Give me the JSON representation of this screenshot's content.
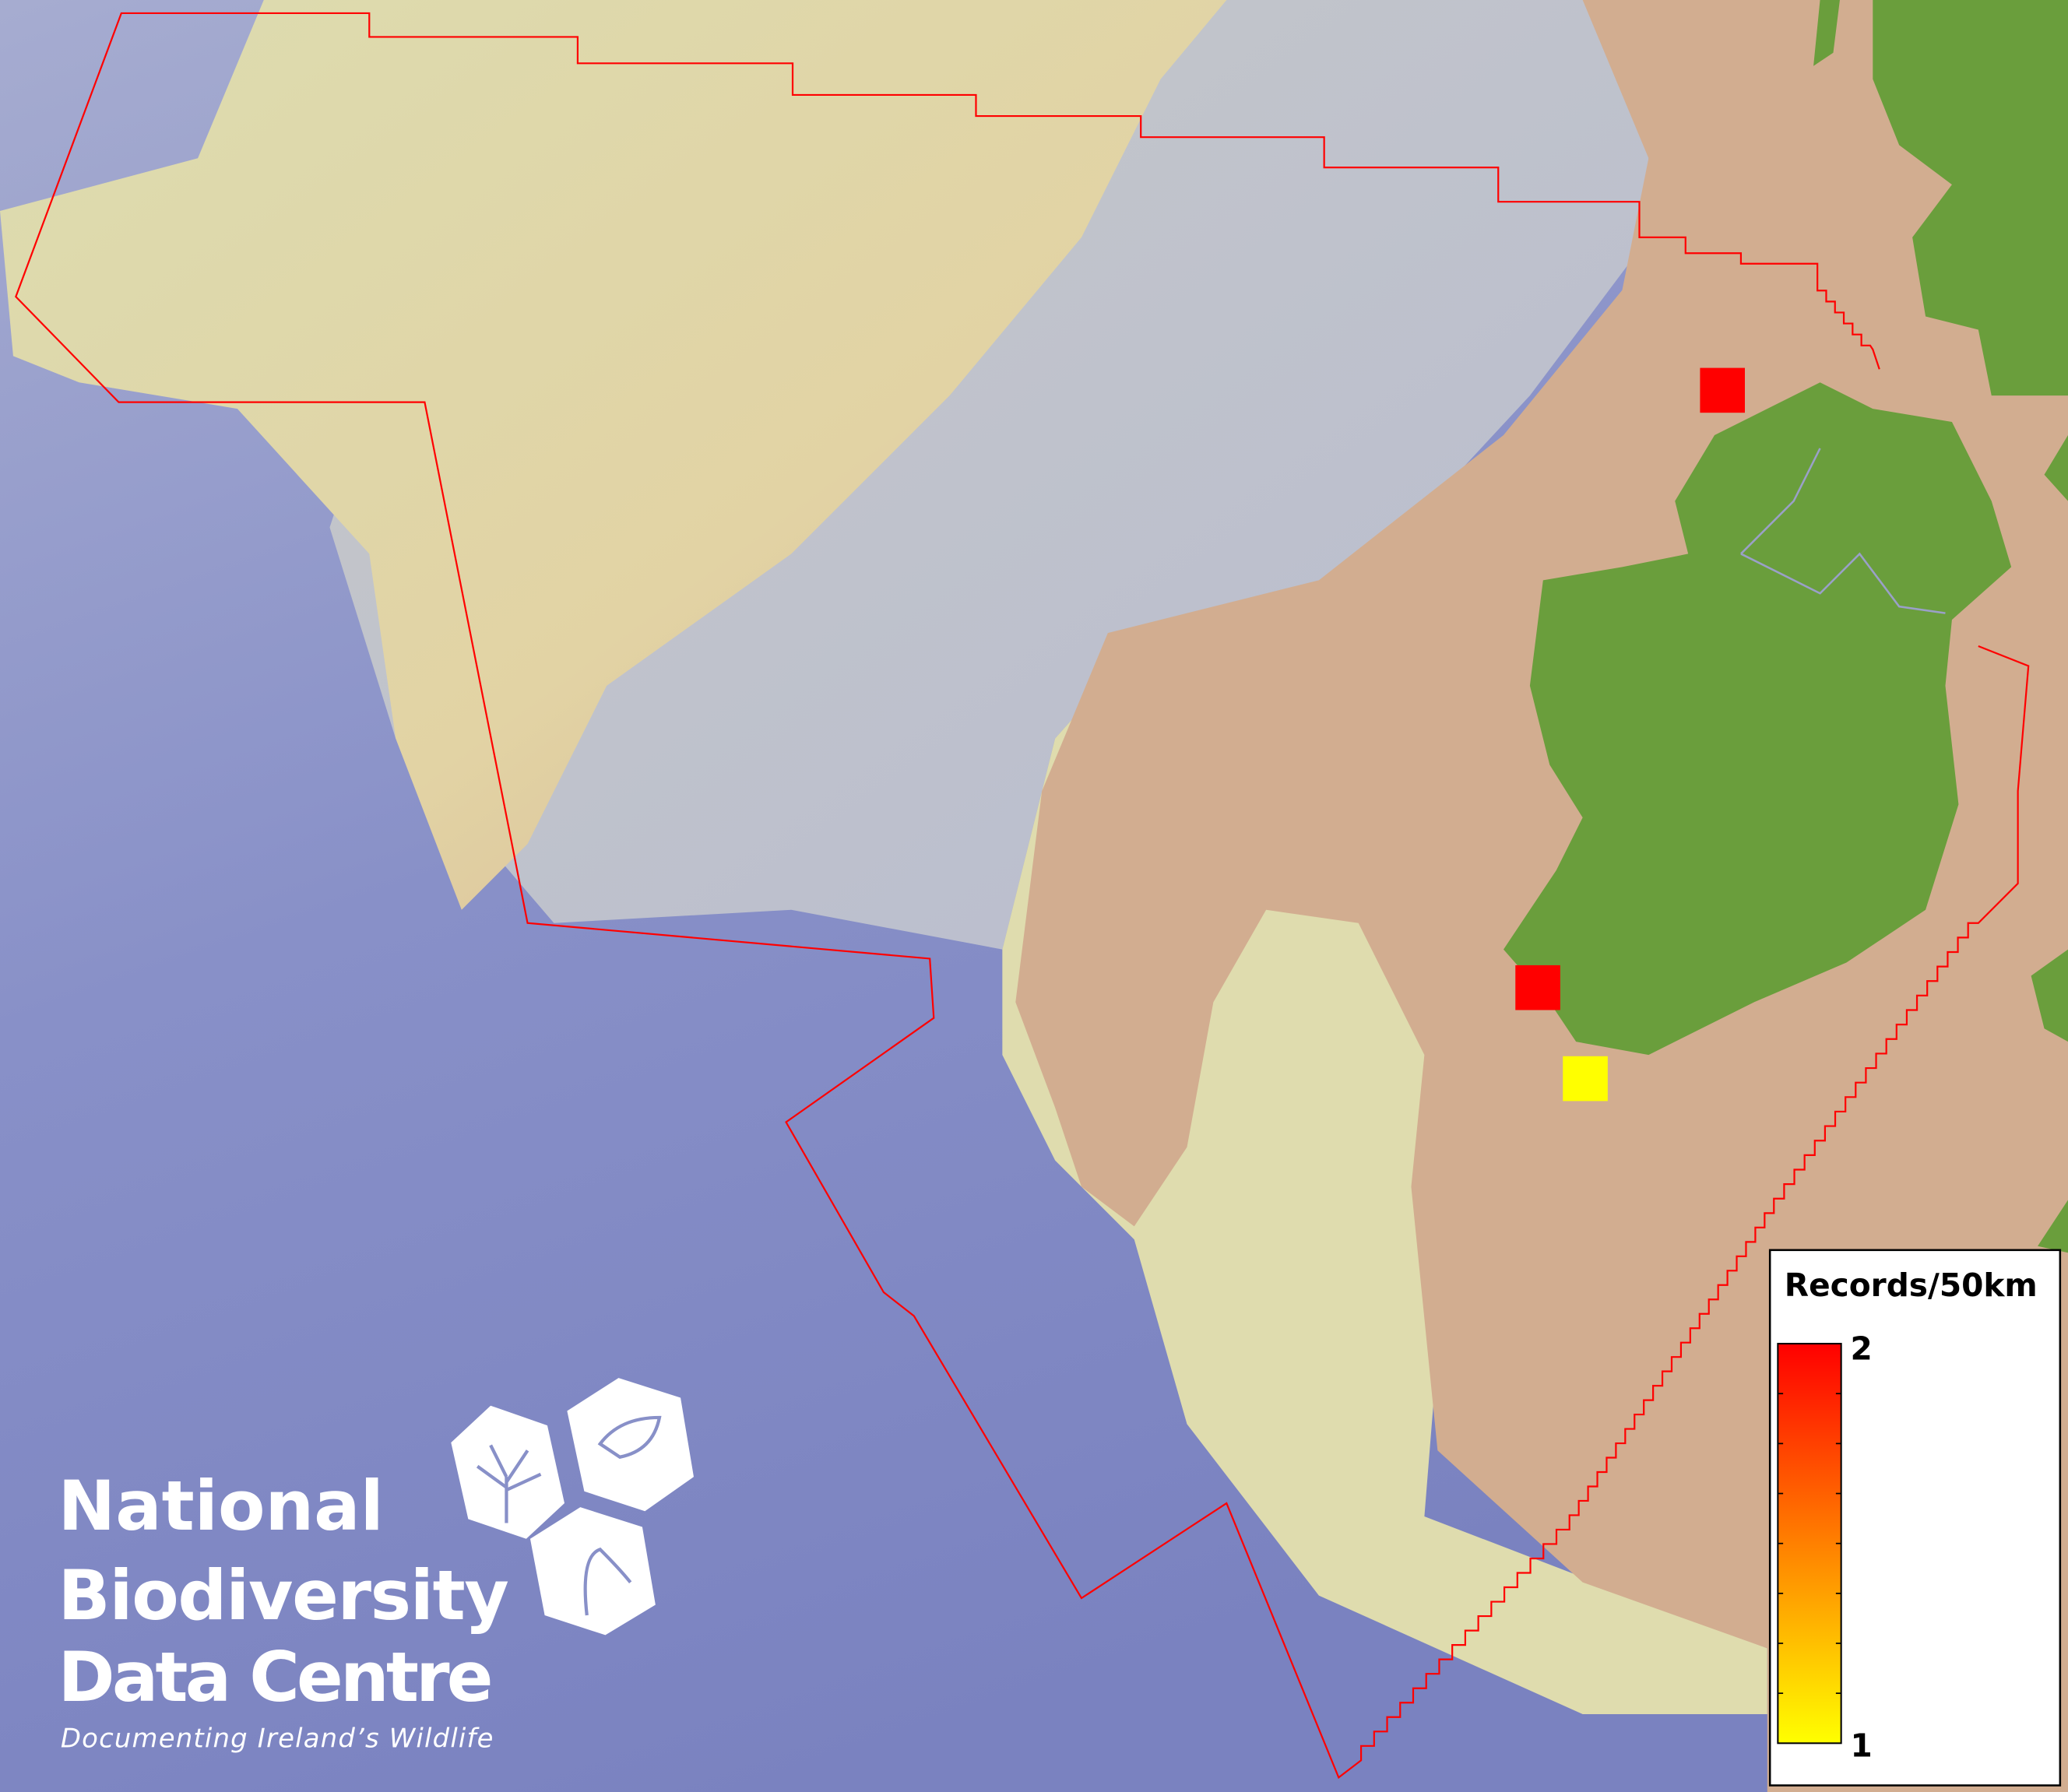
{
  "legend": {
    "title": "Records/50km",
    "max_label": "2",
    "min_label": "1",
    "color_max": "#ff0000",
    "color_min": "#ffff00"
  },
  "records": [
    {
      "value": 2,
      "color": "#ff0000"
    },
    {
      "value": 2,
      "color": "#ff0000"
    },
    {
      "value": 1,
      "color": "#ffff00"
    }
  ],
  "logo": {
    "line1": "National",
    "line2": "Biodiversity",
    "line3": "Data Centre",
    "tagline": "Documenting Ireland’s Wildlife"
  },
  "colors": {
    "ocean": "#7f88c4",
    "shelf": "#d2ad90",
    "land": "#6a9e3c",
    "boundary": "#ff0000"
  }
}
